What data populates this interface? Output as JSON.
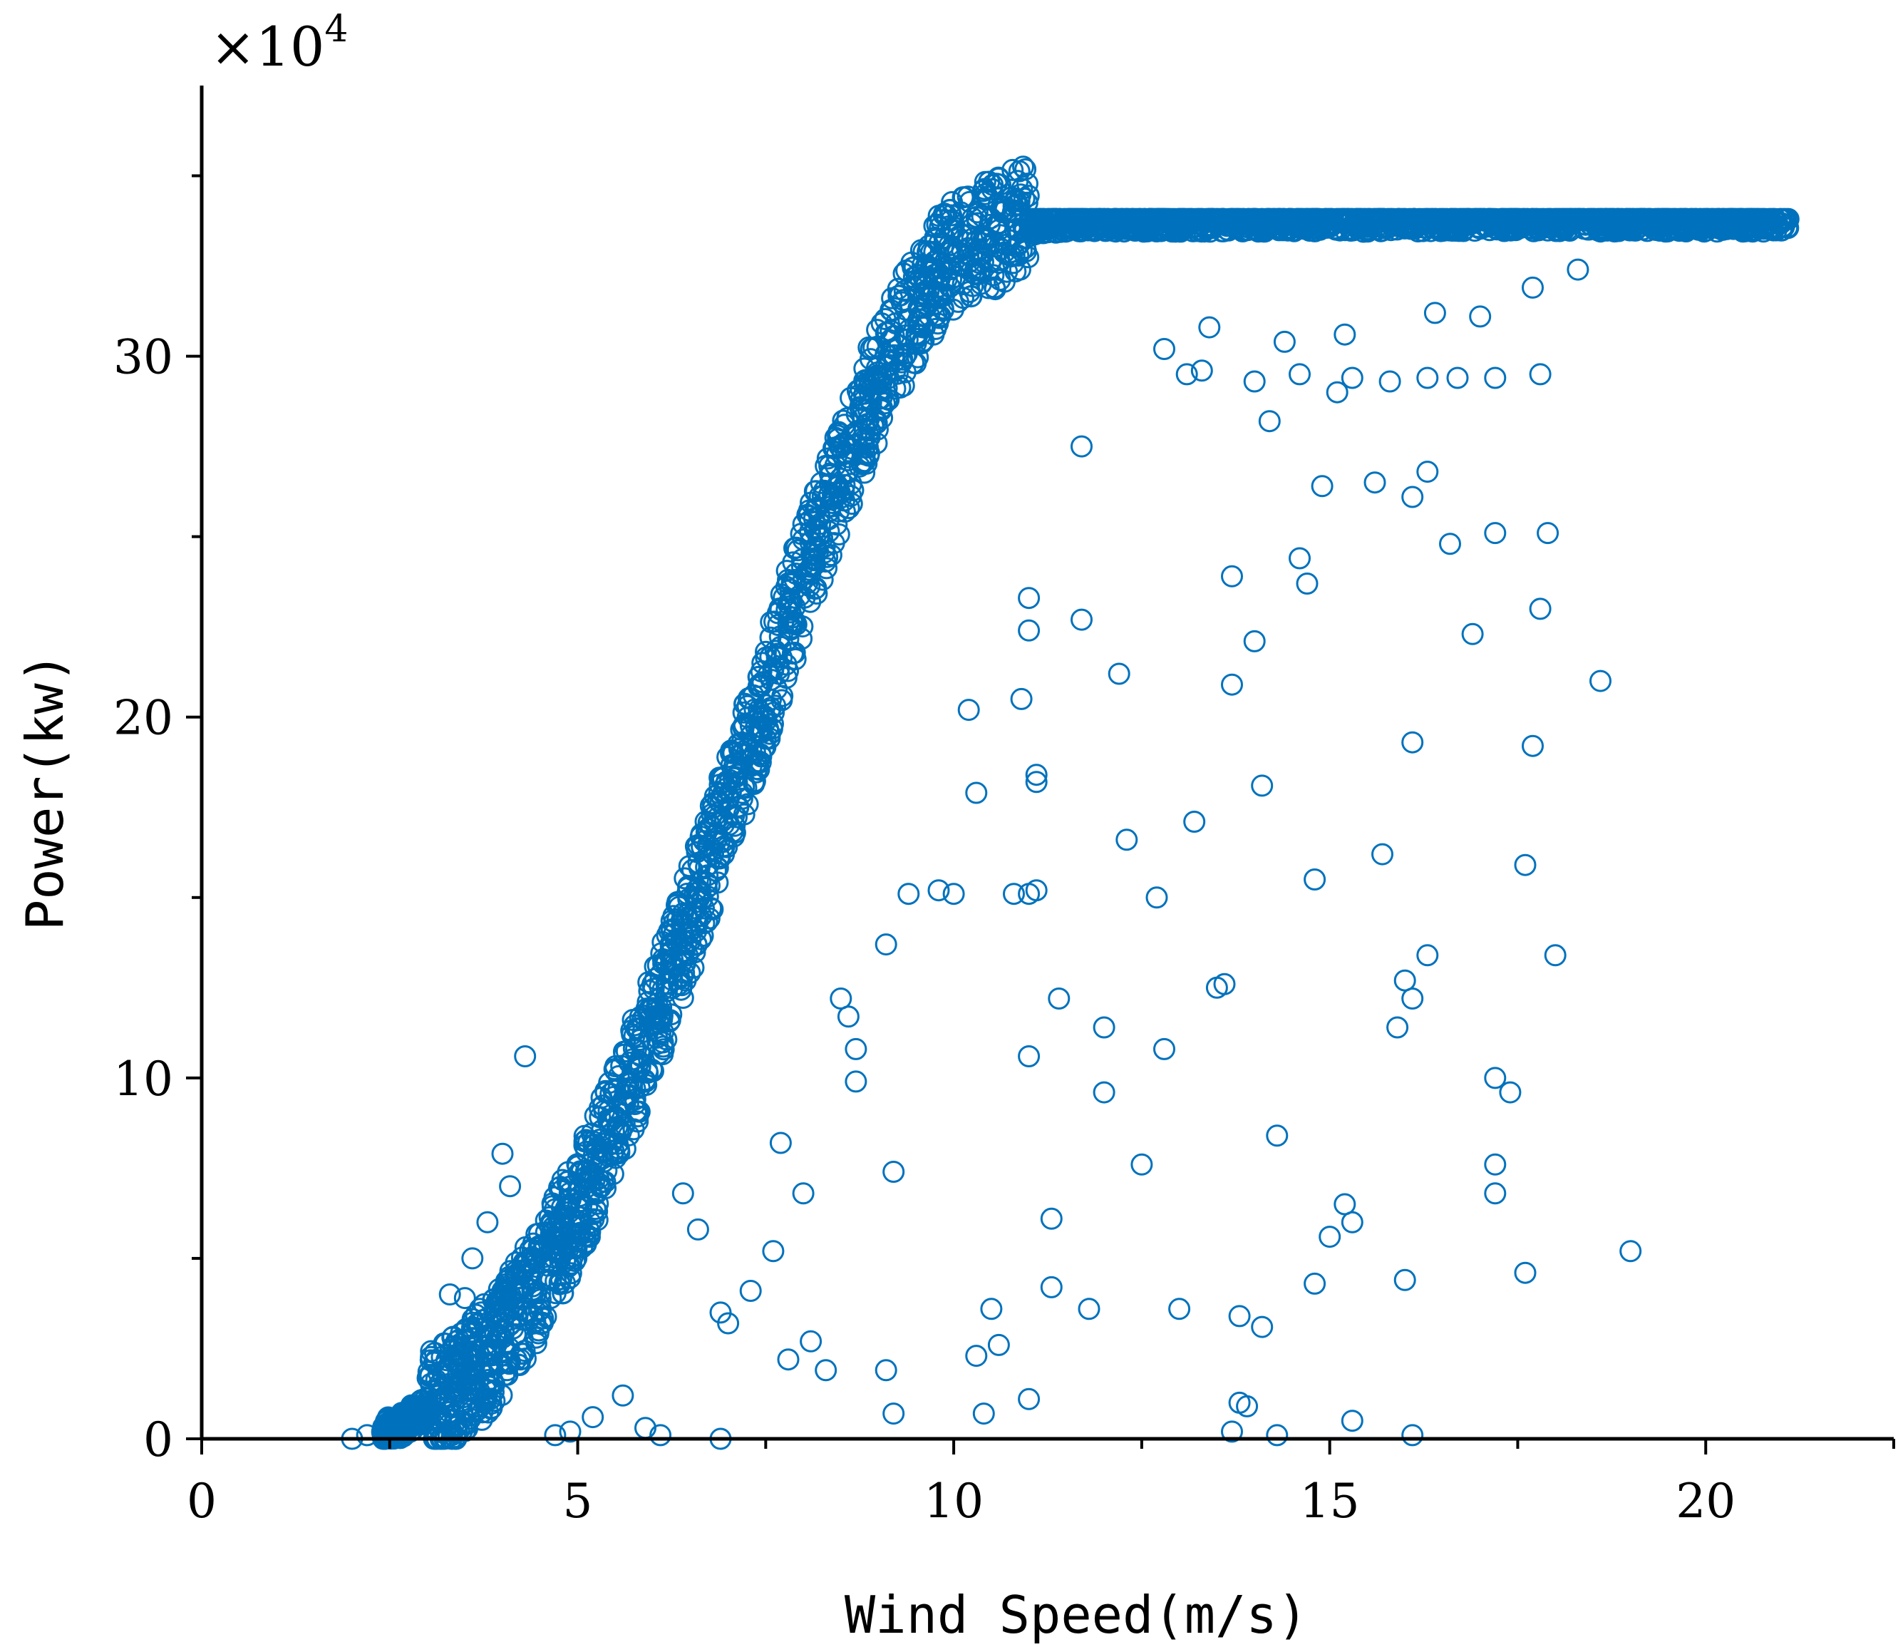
{
  "chart_data": {
    "type": "scatter",
    "title": "",
    "xlabel": "Wind Speed(m/s)",
    "ylabel": "Power(kw)",
    "y_multiplier": "×10",
    "y_multiplier_exponent": "4",
    "xlim": [
      0,
      22.5
    ],
    "ylim": [
      0,
      37.5
    ],
    "x_ticks": [
      0,
      5,
      10,
      15,
      20
    ],
    "x_tick_labels": [
      "0",
      "5",
      "10",
      "15",
      "20"
    ],
    "x_minor_ticks": [
      2.5,
      7.5,
      12.5,
      17.5,
      22.5
    ],
    "y_ticks": [
      0,
      10,
      20,
      30
    ],
    "y_tick_labels": [
      "0",
      "10",
      "20",
      "30"
    ],
    "y_minor_ticks": [
      5,
      15,
      25,
      35
    ],
    "grid": false,
    "legend": "none",
    "marker": "open-circle",
    "marker_color": "#0072BD",
    "series": [
      {
        "points": [
          [
            2.0,
            0.0
          ],
          [
            2.2,
            0.1
          ],
          [
            2.4,
            0.2
          ],
          [
            2.5,
            0.3
          ],
          [
            2.7,
            0.4
          ],
          [
            2.8,
            0.6
          ],
          [
            3.0,
            0.8
          ],
          [
            3.2,
            1.1
          ],
          [
            3.4,
            1.4
          ],
          [
            3.6,
            1.8
          ],
          [
            3.8,
            2.3
          ],
          [
            4.0,
            2.8
          ],
          [
            4.2,
            3.4
          ],
          [
            4.4,
            4.0
          ],
          [
            4.6,
            4.8
          ],
          [
            4.8,
            5.6
          ],
          [
            5.0,
            6.4
          ],
          [
            5.2,
            7.3
          ],
          [
            5.4,
            8.3
          ],
          [
            5.6,
            9.3
          ],
          [
            5.8,
            10.4
          ],
          [
            6.0,
            11.5
          ],
          [
            6.2,
            12.6
          ],
          [
            6.4,
            13.8
          ],
          [
            6.6,
            15.0
          ],
          [
            6.8,
            16.2
          ],
          [
            7.0,
            17.5
          ],
          [
            7.2,
            18.8
          ],
          [
            7.4,
            20.0
          ],
          [
            7.6,
            21.3
          ],
          [
            7.8,
            22.6
          ],
          [
            8.0,
            23.8
          ],
          [
            8.2,
            25.0
          ],
          [
            8.4,
            26.1
          ],
          [
            8.6,
            27.2
          ],
          [
            8.8,
            28.3
          ],
          [
            9.0,
            29.3
          ],
          [
            9.2,
            30.2
          ],
          [
            9.4,
            31.0
          ],
          [
            9.6,
            31.7
          ],
          [
            9.8,
            32.3
          ],
          [
            10.0,
            32.8
          ],
          [
            10.3,
            33.2
          ],
          [
            10.6,
            33.5
          ],
          [
            11.0,
            33.7
          ],
          [
            11.5,
            33.8
          ],
          [
            12.0,
            33.8
          ],
          [
            12.5,
            33.8
          ],
          [
            13.0,
            33.8
          ],
          [
            13.5,
            33.8
          ],
          [
            14.0,
            33.8
          ],
          [
            14.5,
            33.8
          ],
          [
            15.0,
            33.8
          ],
          [
            15.5,
            33.8
          ],
          [
            16.0,
            33.8
          ],
          [
            16.5,
            33.8
          ],
          [
            17.0,
            33.8
          ],
          [
            17.5,
            33.8
          ],
          [
            18.0,
            33.8
          ],
          [
            18.5,
            33.8
          ],
          [
            19.0,
            33.8
          ],
          [
            19.5,
            33.8
          ],
          [
            20.0,
            33.8
          ],
          [
            20.3,
            33.8
          ],
          [
            20.6,
            33.8
          ],
          [
            20.9,
            33.8
          ],
          [
            21.1,
            33.8
          ],
          [
            3.3,
            4.0
          ],
          [
            3.5,
            3.9
          ],
          [
            3.6,
            5.0
          ],
          [
            3.8,
            6.0
          ],
          [
            4.0,
            7.9
          ],
          [
            4.1,
            7.0
          ],
          [
            4.3,
            10.6
          ],
          [
            4.5,
            5.3
          ],
          [
            4.8,
            6.2
          ],
          [
            3.7,
            3.6
          ],
          [
            4.1,
            3.3
          ],
          [
            4.7,
            0.1
          ],
          [
            5.2,
            0.6
          ],
          [
            5.6,
            1.2
          ],
          [
            5.9,
            0.3
          ],
          [
            6.1,
            0.1
          ],
          [
            6.9,
            0.0
          ],
          [
            4.9,
            0.2
          ],
          [
            6.4,
            6.8
          ],
          [
            6.6,
            5.8
          ],
          [
            6.9,
            3.5
          ],
          [
            7.0,
            3.2
          ],
          [
            7.3,
            4.1
          ],
          [
            7.6,
            5.2
          ],
          [
            7.7,
            8.2
          ],
          [
            8.0,
            6.8
          ],
          [
            7.8,
            2.2
          ],
          [
            8.1,
            2.7
          ],
          [
            8.3,
            1.9
          ],
          [
            8.7,
            9.9
          ],
          [
            8.7,
            10.8
          ],
          [
            8.5,
            12.2
          ],
          [
            8.6,
            11.7
          ],
          [
            9.1,
            13.7
          ],
          [
            9.2,
            7.4
          ],
          [
            9.1,
            1.9
          ],
          [
            9.2,
            0.7
          ],
          [
            9.4,
            15.1
          ],
          [
            9.8,
            15.2
          ],
          [
            10.0,
            15.1
          ],
          [
            10.2,
            20.2
          ],
          [
            10.3,
            17.9
          ],
          [
            10.3,
            2.3
          ],
          [
            10.5,
            3.6
          ],
          [
            10.6,
            2.6
          ],
          [
            10.4,
            0.7
          ],
          [
            10.8,
            15.1
          ],
          [
            10.9,
            20.5
          ],
          [
            11.0,
            23.3
          ],
          [
            11.0,
            22.4
          ],
          [
            11.1,
            18.4
          ],
          [
            11.1,
            18.2
          ],
          [
            11.0,
            15.1
          ],
          [
            11.1,
            15.2
          ],
          [
            11.0,
            10.6
          ],
          [
            11.0,
            1.1
          ],
          [
            11.3,
            6.1
          ],
          [
            11.3,
            4.2
          ],
          [
            11.4,
            12.2
          ],
          [
            11.7,
            22.7
          ],
          [
            11.7,
            27.5
          ],
          [
            11.8,
            3.6
          ],
          [
            12.0,
            11.4
          ],
          [
            12.0,
            9.6
          ],
          [
            12.2,
            21.2
          ],
          [
            12.3,
            16.6
          ],
          [
            12.5,
            7.6
          ],
          [
            12.7,
            15.0
          ],
          [
            12.8,
            10.8
          ],
          [
            13.0,
            3.6
          ],
          [
            13.1,
            29.5
          ],
          [
            13.2,
            17.1
          ],
          [
            13.5,
            12.5
          ],
          [
            13.6,
            12.6
          ],
          [
            13.7,
            23.9
          ],
          [
            13.7,
            20.9
          ],
          [
            13.7,
            0.2
          ],
          [
            13.8,
            3.4
          ],
          [
            13.8,
            1.0
          ],
          [
            13.9,
            0.9
          ],
          [
            14.0,
            22.1
          ],
          [
            14.1,
            18.1
          ],
          [
            14.1,
            3.1
          ],
          [
            14.2,
            28.2
          ],
          [
            14.3,
            8.4
          ],
          [
            14.3,
            0.1
          ],
          [
            14.6,
            24.4
          ],
          [
            14.7,
            23.7
          ],
          [
            14.8,
            15.5
          ],
          [
            14.8,
            4.3
          ],
          [
            14.9,
            26.4
          ],
          [
            15.0,
            5.6
          ],
          [
            15.1,
            29.0
          ],
          [
            15.2,
            6.5
          ],
          [
            15.3,
            6.0
          ],
          [
            15.3,
            0.5
          ],
          [
            15.6,
            26.5
          ],
          [
            15.7,
            16.2
          ],
          [
            15.9,
            11.4
          ],
          [
            16.0,
            12.7
          ],
          [
            16.0,
            4.4
          ],
          [
            16.1,
            26.1
          ],
          [
            16.1,
            19.3
          ],
          [
            16.1,
            12.2
          ],
          [
            16.1,
            0.1
          ],
          [
            16.3,
            26.8
          ],
          [
            16.3,
            13.4
          ],
          [
            16.6,
            24.8
          ],
          [
            16.9,
            22.3
          ],
          [
            17.2,
            25.1
          ],
          [
            17.2,
            10.0
          ],
          [
            17.2,
            7.6
          ],
          [
            17.2,
            6.8
          ],
          [
            17.4,
            9.6
          ],
          [
            17.6,
            15.9
          ],
          [
            17.6,
            4.6
          ],
          [
            17.7,
            19.2
          ],
          [
            17.8,
            23.0
          ],
          [
            17.9,
            25.1
          ],
          [
            18.0,
            13.4
          ],
          [
            18.6,
            21.0
          ],
          [
            19.0,
            5.2
          ],
          [
            13.3,
            29.6
          ],
          [
            14.0,
            29.3
          ],
          [
            14.6,
            29.5
          ],
          [
            15.3,
            29.4
          ],
          [
            15.8,
            29.3
          ],
          [
            16.3,
            29.4
          ],
          [
            16.7,
            29.4
          ],
          [
            17.2,
            29.4
          ],
          [
            17.8,
            29.5
          ],
          [
            12.8,
            30.2
          ],
          [
            13.4,
            30.8
          ],
          [
            14.4,
            30.4
          ],
          [
            15.2,
            30.6
          ],
          [
            16.4,
            31.2
          ],
          [
            17.0,
            31.1
          ],
          [
            17.7,
            31.9
          ],
          [
            18.3,
            32.4
          ],
          [
            18.8,
            33.5
          ]
        ]
      }
    ]
  }
}
